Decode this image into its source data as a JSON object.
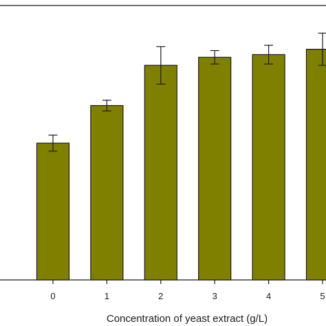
{
  "chart_data": {
    "type": "bar",
    "title": "",
    "xlabel": "Concentration of yeast extract (g/L)",
    "ylabel": "",
    "categories": [
      "0",
      "1",
      "2",
      "3",
      "4",
      "5"
    ],
    "values": [
      51,
      65,
      80,
      83,
      84,
      86
    ],
    "errors": [
      3,
      2,
      7,
      2.5,
      3.5,
      6
    ],
    "ylim": [
      0,
      100
    ],
    "bar_color": "#808000",
    "bar_edge_color": "#1a1a1a",
    "grid": false,
    "legend": "none"
  }
}
